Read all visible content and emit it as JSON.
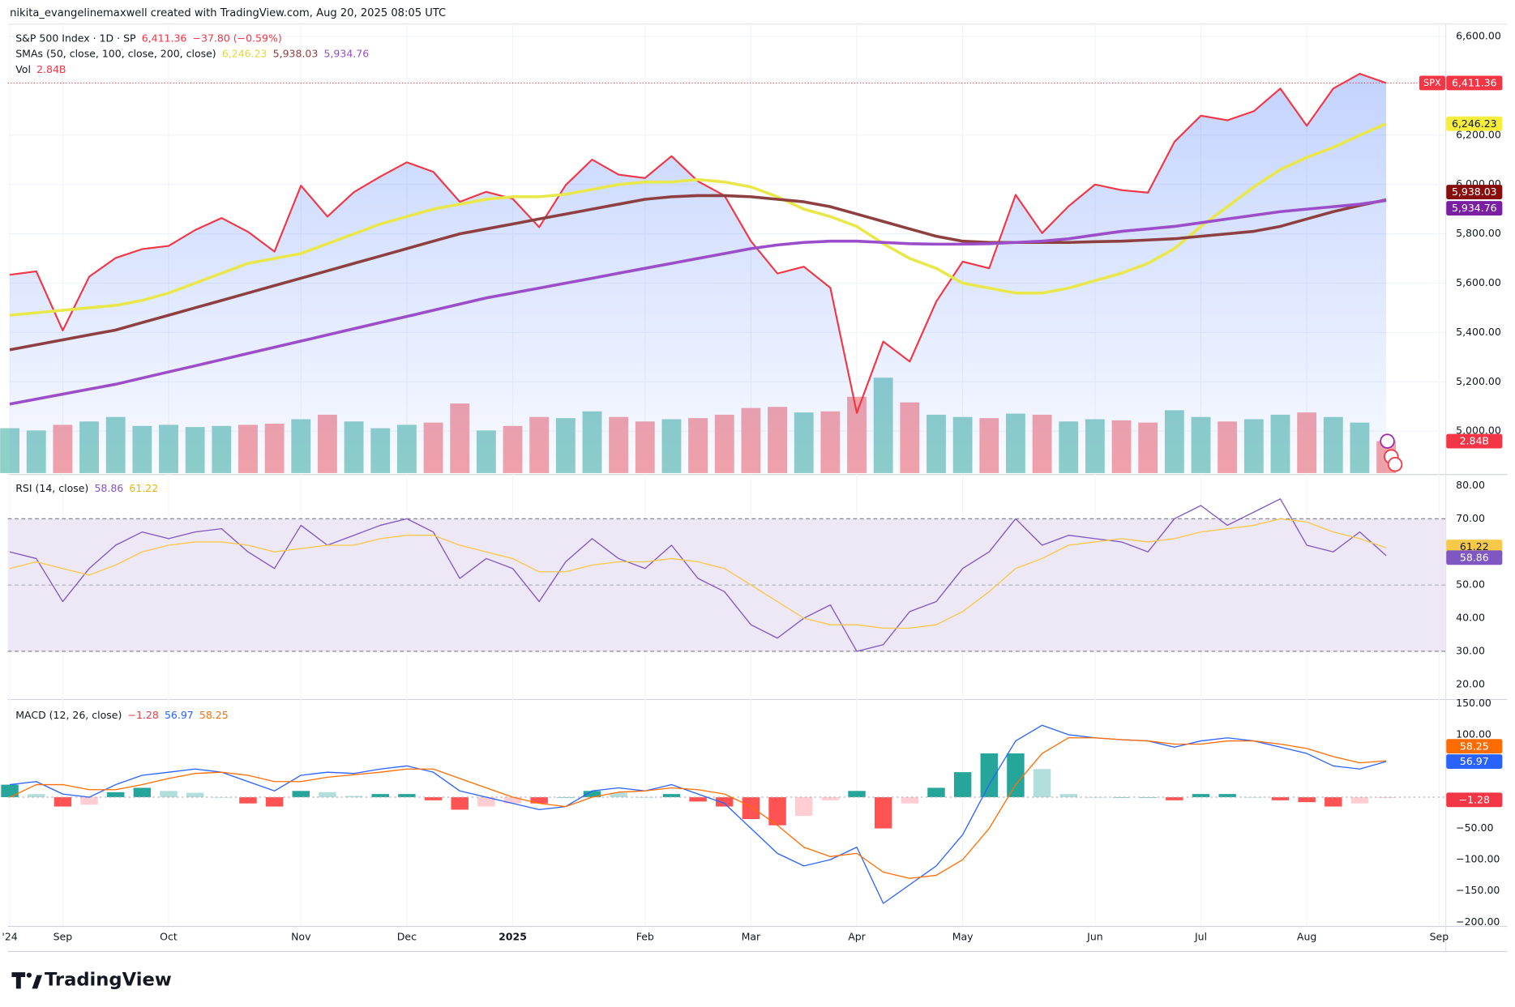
{
  "attribution": "nikita_evangelinemaxwell created with TradingView.com, Aug 20, 2025 08:05 UTC",
  "brand": "TradingView",
  "chart_data": [
    {
      "type": "line",
      "title": "S&P 500 Index · 1D · SP",
      "symbol": "SPX",
      "last_label": "6,411.36",
      "change": "−37.80 (−0.59%)",
      "sma_legend": "SMAs (50, close, 100, close, 200, close)",
      "ylim": [
        4830,
        6650
      ],
      "yticks": [
        {
          "value": 6600,
          "label": "6,600.00"
        },
        {
          "value": 6200,
          "label": "6,200.00"
        },
        {
          "value": 6000,
          "label": "6,000.00"
        },
        {
          "value": 5800,
          "label": "5,800.00"
        },
        {
          "value": 5600,
          "label": "5,600.00"
        },
        {
          "value": 5400,
          "label": "5,400.00"
        },
        {
          "value": 5200,
          "label": "5,200.00"
        },
        {
          "value": 5000,
          "label": "5,000.00"
        }
      ],
      "grid": true,
      "series": [
        {
          "color": "#f23645",
          "area": true,
          "last_label": "6,411.36",
          "values": [
            5634,
            5648,
            5408,
            5626,
            5702,
            5738,
            5751,
            5815,
            5864,
            5808,
            5728,
            5995,
            5870,
            5969,
            6032,
            6090,
            6051,
            5930,
            5970,
            5942,
            5827,
            5997,
            6101,
            6040,
            6026,
            6115,
            6013,
            5955,
            5770,
            5639,
            5667,
            5581,
            5074,
            5363,
            5282,
            5525,
            5687,
            5660,
            5958,
            5803,
            5912,
            6000,
            5977,
            5967,
            6173,
            6279,
            6260,
            6297,
            6389,
            6238,
            6389,
            6449,
            6411.36,
            null,
            null
          ]
        },
        {
          "color": "#e8e84a",
          "last_label": "6,246.23",
          "values": [
            5470,
            5480,
            5490,
            5500,
            5510,
            5530,
            5560,
            5600,
            5640,
            5680,
            5700,
            5720,
            5760,
            5800,
            5840,
            5870,
            5900,
            5920,
            5940,
            5950,
            5950,
            5960,
            5980,
            6000,
            6010,
            6010,
            6020,
            6010,
            5990,
            5950,
            5900,
            5870,
            5830,
            5760,
            5700,
            5660,
            5600,
            5580,
            5560,
            5560,
            5580,
            5610,
            5640,
            5680,
            5740,
            5830,
            5910,
            5990,
            6060,
            6110,
            6150,
            6200,
            6246.23,
            null,
            null
          ]
        },
        {
          "color": "#8e3f3f",
          "last_label": "5,938.03",
          "values": [
            5330,
            5350,
            5370,
            5390,
            5410,
            5440,
            5470,
            5500,
            5530,
            5560,
            5590,
            5620,
            5650,
            5680,
            5710,
            5740,
            5770,
            5800,
            5820,
            5840,
            5860,
            5880,
            5900,
            5920,
            5940,
            5950,
            5955,
            5955,
            5950,
            5940,
            5930,
            5910,
            5880,
            5850,
            5820,
            5790,
            5770,
            5765,
            5765,
            5765,
            5765,
            5768,
            5770,
            5775,
            5780,
            5790,
            5800,
            5810,
            5830,
            5860,
            5890,
            5915,
            5938.03,
            null,
            null
          ]
        },
        {
          "color": "#9b4dca",
          "last_label": "5,934.76",
          "values": [
            5110,
            5130,
            5150,
            5170,
            5190,
            5215,
            5240,
            5265,
            5290,
            5315,
            5340,
            5365,
            5390,
            5415,
            5440,
            5465,
            5490,
            5515,
            5540,
            5560,
            5580,
            5600,
            5620,
            5640,
            5660,
            5680,
            5700,
            5720,
            5740,
            5755,
            5765,
            5770,
            5770,
            5765,
            5760,
            5758,
            5758,
            5760,
            5765,
            5770,
            5780,
            5795,
            5810,
            5820,
            5830,
            5845,
            5860,
            5875,
            5890,
            5900,
            5910,
            5920,
            5934.76,
            null,
            null
          ]
        }
      ],
      "volume": {
        "name": "Vol",
        "last_label": "2.84B",
        "up_color": "#8fd0c9",
        "down_color": "#f5a3a8",
        "y2lim": [
          0,
          40
        ],
        "values": [
          4.0,
          3.8,
          4.3,
          4.6,
          5.0,
          4.2,
          4.3,
          4.1,
          4.2,
          4.3,
          4.4,
          4.8,
          5.2,
          4.6,
          4.0,
          4.3,
          4.5,
          6.2,
          3.8,
          4.2,
          5.0,
          4.9,
          5.5,
          5.0,
          4.6,
          4.8,
          4.9,
          5.2,
          5.8,
          5.9,
          5.4,
          5.5,
          6.8,
          8.5,
          6.3,
          5.2,
          5.0,
          4.9,
          5.3,
          5.2,
          4.6,
          4.8,
          4.7,
          4.5,
          5.6,
          5.0,
          4.6,
          4.8,
          5.2,
          5.4,
          5.0,
          4.5,
          2.84,
          null,
          null
        ]
      }
    },
    {
      "type": "line",
      "title": "RSI (14, close)",
      "ylim": [
        15.9,
        82.9
      ],
      "yticks": [
        {
          "value": 80,
          "label": "80.00"
        },
        {
          "value": 70,
          "label": "70.00"
        },
        {
          "value": 50,
          "label": "50.00"
        },
        {
          "value": 40,
          "label": "40.00"
        },
        {
          "value": 30,
          "label": "30.00"
        },
        {
          "value": 20,
          "label": "20.00"
        }
      ],
      "bands": [
        30,
        70
      ],
      "midline": 50,
      "band_color": "#ede7f6",
      "series": [
        {
          "color": "#7e57c2",
          "last_label": "58.86",
          "values": [
            60,
            58,
            45,
            55,
            62,
            66,
            64,
            66,
            67,
            60,
            55,
            68,
            62,
            65,
            68,
            70,
            66,
            52,
            58,
            55,
            45,
            57,
            64,
            58,
            55,
            62,
            52,
            48,
            38,
            34,
            40,
            44,
            30,
            32,
            42,
            45,
            55,
            60,
            70,
            62,
            65,
            64,
            63,
            60,
            70,
            74,
            68,
            72,
            76,
            62,
            60,
            66,
            58.86,
            null,
            null
          ]
        },
        {
          "color": "#f7c948",
          "last_label": "61.22",
          "values": [
            55,
            57,
            55,
            53,
            56,
            60,
            62,
            63,
            63,
            62,
            60,
            61,
            62,
            62,
            64,
            65,
            65,
            62,
            60,
            58,
            54,
            54,
            56,
            57,
            57,
            58,
            57,
            55,
            50,
            45,
            40,
            38,
            38,
            37,
            37,
            38,
            42,
            48,
            55,
            58,
            62,
            63,
            64,
            63,
            64,
            66,
            67,
            68,
            70,
            69,
            66,
            64,
            61.22,
            null,
            null
          ]
        }
      ]
    },
    {
      "type": "line",
      "title": "MACD (12, 26, close)",
      "ylim": [
        -206,
        154
      ],
      "yticks": [
        {
          "value": 150,
          "label": "150.00"
        },
        {
          "value": 100,
          "label": "100.00"
        },
        {
          "value": -50,
          "label": "−50.00"
        },
        {
          "value": -100,
          "label": "−100.00"
        },
        {
          "value": -150,
          "label": "−150.00"
        },
        {
          "value": -200,
          "label": "−200.00"
        }
      ],
      "categories": [
        "'24",
        null,
        "Sep",
        null,
        null,
        null,
        "Oct",
        null,
        null,
        null,
        null,
        "Nov",
        null,
        null,
        null,
        "Dec",
        null,
        null,
        null,
        "2025",
        null,
        null,
        null,
        null,
        "Feb",
        null,
        null,
        null,
        "Mar",
        null,
        null,
        null,
        "Apr",
        null,
        null,
        null,
        "May",
        null,
        null,
        null,
        null,
        "Jun",
        null,
        null,
        null,
        "Jul",
        null,
        null,
        null,
        "Aug",
        null,
        null,
        null,
        null,
        "Sep"
      ],
      "histogram": {
        "last_label": "−1.28",
        "colors": [
          "#26a69a",
          "#b2dfdb",
          "#ff5252",
          "#ffcdd2"
        ],
        "values": [
          20,
          5,
          -15,
          -12,
          8,
          15,
          10,
          7,
          0,
          -10,
          -15,
          10,
          8,
          2,
          5,
          5,
          -5,
          -20,
          -15,
          -10,
          -10,
          0,
          10,
          7,
          0,
          5,
          -7,
          -15,
          -35,
          -45,
          -30,
          -5,
          10,
          -50,
          -10,
          15,
          40,
          70,
          70,
          45,
          5,
          0,
          0,
          0,
          -5,
          5,
          5,
          0,
          -5,
          -8,
          -15,
          -10,
          -1.28,
          null,
          null
        ]
      },
      "series": [
        {
          "color": "#2962ff",
          "last_label": "56.97",
          "values": [
            20,
            25,
            5,
            0,
            20,
            35,
            40,
            45,
            40,
            25,
            10,
            35,
            40,
            38,
            45,
            50,
            40,
            10,
            0,
            -10,
            -20,
            -15,
            10,
            15,
            10,
            20,
            5,
            -10,
            -50,
            -90,
            -110,
            -100,
            -80,
            -170,
            -140,
            -110,
            -60,
            20,
            90,
            115,
            100,
            95,
            92,
            90,
            80,
            90,
            95,
            90,
            80,
            70,
            50,
            45,
            56.97,
            null,
            null
          ]
        },
        {
          "color": "#ff6d00",
          "last_label": "58.25",
          "values": [
            0,
            20,
            20,
            12,
            12,
            20,
            30,
            38,
            40,
            35,
            25,
            25,
            32,
            36,
            40,
            45,
            45,
            30,
            15,
            0,
            -10,
            -15,
            0,
            8,
            10,
            15,
            12,
            5,
            -15,
            -45,
            -80,
            -95,
            -90,
            -120,
            -130,
            -125,
            -100,
            -50,
            20,
            70,
            95,
            95,
            92,
            90,
            85,
            85,
            90,
            90,
            85,
            78,
            65,
            55,
            58.25,
            null,
            null
          ]
        }
      ]
    }
  ]
}
